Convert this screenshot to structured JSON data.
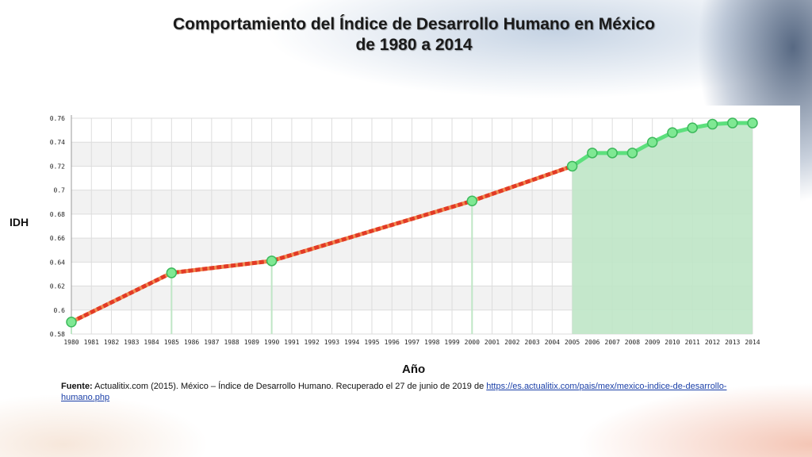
{
  "header": {
    "title_line1": "Comportamiento del Índice de Desarrollo Humano en México",
    "title_line2": "de 1980 a 2014"
  },
  "colors": {
    "dashed_line": "#e23a26",
    "dashed_line_alt": "#f08a50",
    "green_line": "#5de07d",
    "green_fill": "#bfe6c6",
    "marker_fill": "#7fe893",
    "marker_stroke": "#3db95c",
    "grid": "#dddddd",
    "band": "#f2f2f2"
  },
  "chart_data": {
    "type": "line",
    "ylabel": "IDH",
    "xlabel": "Año",
    "ylim": [
      0.58,
      0.76
    ],
    "yticks": [
      "0.58",
      "0.6",
      "0.62",
      "0.64",
      "0.66",
      "0.68",
      "0.7",
      "0.72",
      "0.74",
      "0.76"
    ],
    "x": [
      "1980",
      "1981",
      "1982",
      "1983",
      "1984",
      "1985",
      "1986",
      "1987",
      "1988",
      "1989",
      "1990",
      "1991",
      "1992",
      "1993",
      "1994",
      "1995",
      "1996",
      "1997",
      "1998",
      "1999",
      "2000",
      "2001",
      "2002",
      "2003",
      "2004",
      "2005",
      "2006",
      "2007",
      "2008",
      "2009",
      "2010",
      "2011",
      "2012",
      "2013",
      "2014"
    ],
    "series": [
      {
        "style": "dashed-interpolated",
        "points": [
          {
            "x": "1980",
            "y": 0.59
          },
          {
            "x": "1985",
            "y": 0.631
          },
          {
            "x": "1990",
            "y": 0.641
          },
          {
            "x": "2000",
            "y": 0.691
          },
          {
            "x": "2005",
            "y": 0.72
          }
        ]
      },
      {
        "style": "solid-area",
        "points": [
          {
            "x": "2005",
            "y": 0.72
          },
          {
            "x": "2006",
            "y": 0.731
          },
          {
            "x": "2007",
            "y": 0.731
          },
          {
            "x": "2008",
            "y": 0.731
          },
          {
            "x": "2009",
            "y": 0.74
          },
          {
            "x": "2010",
            "y": 0.748
          },
          {
            "x": "2011",
            "y": 0.752
          },
          {
            "x": "2012",
            "y": 0.755
          },
          {
            "x": "2013",
            "y": 0.756
          },
          {
            "x": "2014",
            "y": 0.756
          }
        ]
      }
    ],
    "grid": true,
    "legend": "none"
  },
  "source": {
    "label": "Fuente:",
    "text": " Actualitix.com (2015). México – Índice de Desarrollo Humano. Recuperado el 27 de junio de 2019 de ",
    "link": "https://es.actualitix.com/pais/mex/mexico-indice-de-desarrollo-humano.php"
  }
}
